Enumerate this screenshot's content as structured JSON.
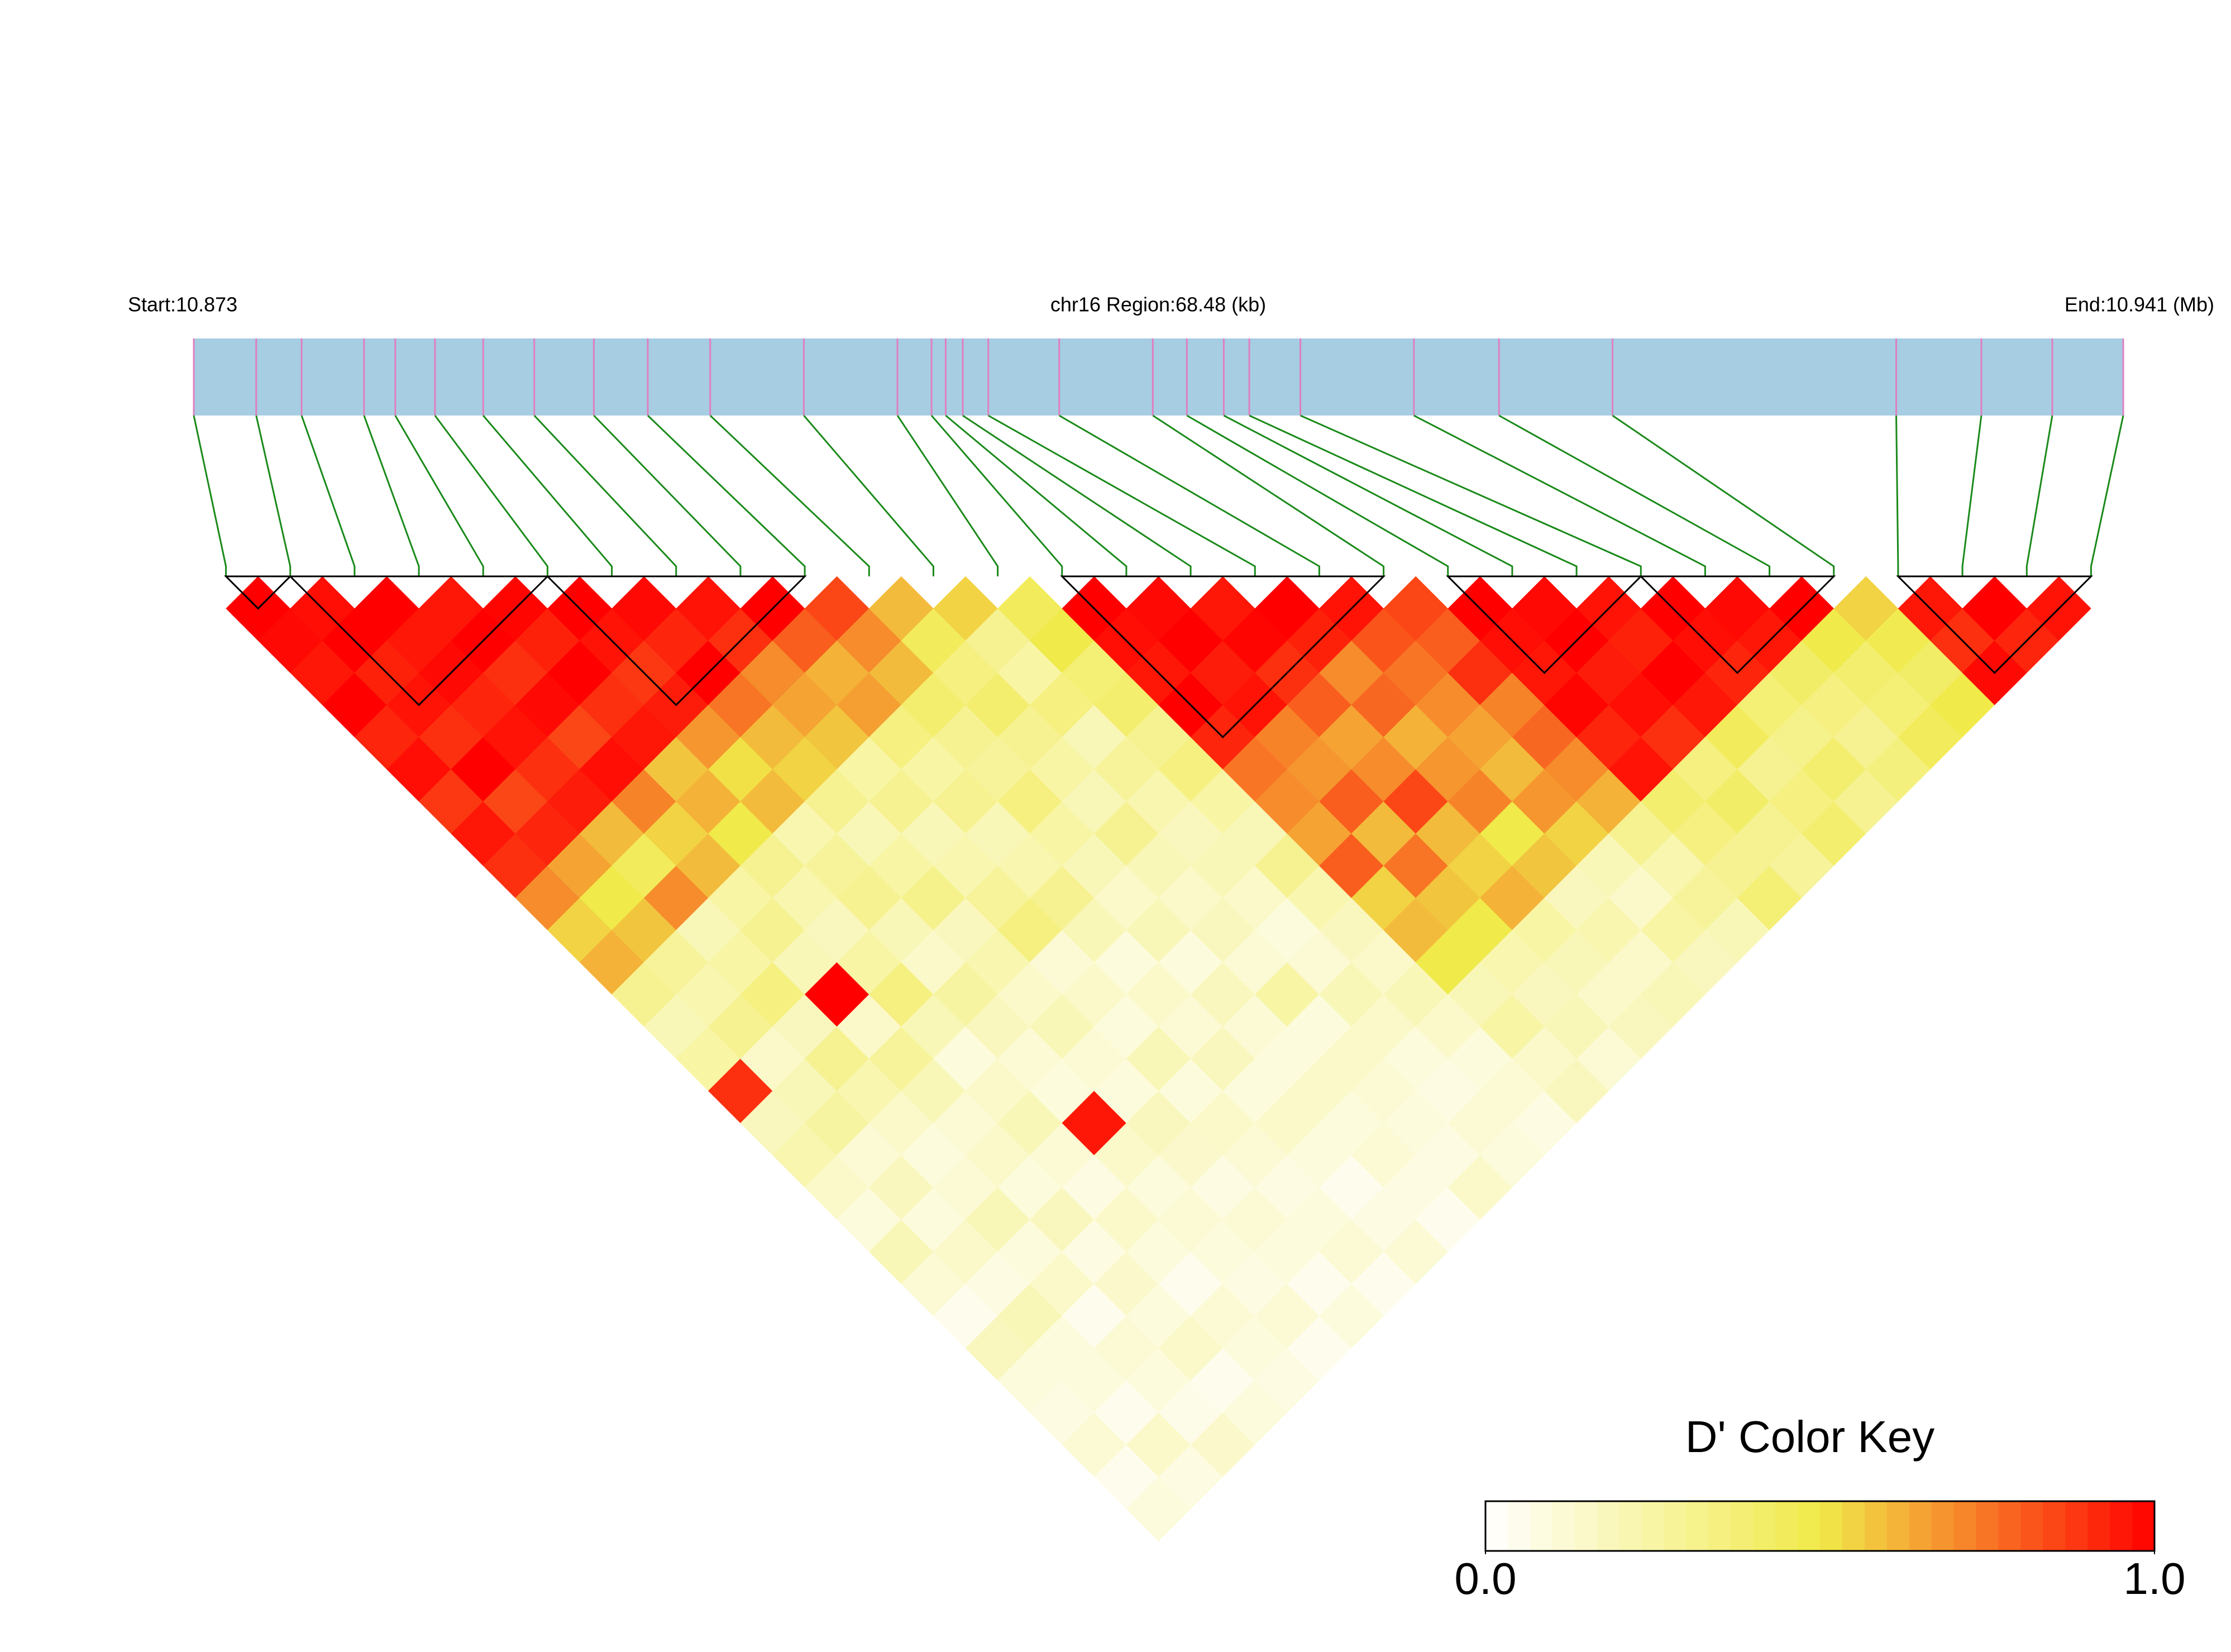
{
  "chart_data": {
    "type": "ld-heatmap",
    "start_label": "Start:10.873",
    "region_label": "chr16 Region:68.48 (kb)",
    "end_label": "End:10.941 (Mb)",
    "xlim": [
      10.873,
      10.941
    ],
    "snp_positions": [
      10.873,
      10.8752,
      10.8768,
      10.879,
      10.8801,
      10.8815,
      10.8832,
      10.885,
      10.8871,
      10.889,
      10.8912,
      10.8945,
      10.8978,
      10.899,
      10.8995,
      10.9001,
      10.901,
      10.9035,
      10.9068,
      10.908,
      10.9093,
      10.9102,
      10.912,
      10.916,
      10.919,
      10.923,
      10.933,
      10.936,
      10.9385,
      10.941
    ],
    "dprime": [
      [
        1,
        0.98,
        0.95,
        1,
        0.92,
        0.97,
        0.88,
        0.95,
        0.9,
        0.7,
        0.55,
        0.62,
        0.3,
        0.2,
        0.25,
        0.9,
        0.18,
        0.22,
        0.15,
        0.1,
        0.2,
        0.12,
        0.05,
        0.18,
        0.1,
        0.08,
        0.12,
        0.05,
        0.1
      ],
      [
        0.97,
        1,
        0.93,
        0.96,
        0.9,
        1,
        0.85,
        0.92,
        0.65,
        0.5,
        0.58,
        0.28,
        0.22,
        0.3,
        0.15,
        0.2,
        0.26,
        0.12,
        0.18,
        0.1,
        0.15,
        0.08,
        0.2,
        0.1,
        0.1,
        0.05,
        0.15,
        0.08
      ],
      [
        1,
        0.95,
        0.98,
        0.92,
        0.96,
        0.9,
        0.94,
        0.6,
        0.45,
        0.7,
        0.2,
        0.25,
        0.35,
        0.18,
        0.3,
        0.22,
        0.15,
        0.1,
        0.12,
        0.2,
        0.1,
        0.15,
        0.05,
        0.12,
        0.1,
        0.06,
        0.14
      ],
      [
        0.95,
        1,
        0.9,
        0.98,
        0.85,
        0.97,
        0.72,
        0.55,
        0.6,
        0.25,
        0.3,
        0.2,
        1,
        0.15,
        0.28,
        0.2,
        0.12,
        0.15,
        0.1,
        0.18,
        0.08,
        0.14,
        0.1,
        0.15,
        0.05,
        0.1
      ],
      [
        0.99,
        0.93,
        1,
        0.9,
        0.95,
        0.58,
        0.62,
        0.5,
        0.3,
        0.22,
        0.18,
        0.25,
        0.35,
        0.2,
        0.1,
        0.15,
        0.2,
        0.12,
        0.08,
        0.15,
        0.1,
        0.05,
        0.12,
        0.1,
        0.08
      ],
      [
        1,
        0.96,
        0.88,
        0.94,
        0.68,
        0.52,
        0.6,
        0.22,
        0.28,
        0.3,
        0.2,
        0.15,
        0.26,
        0.18,
        0.12,
        0.1,
        0.95,
        0.15,
        0.1,
        0.12,
        0.1,
        0.08,
        0.12,
        0.05
      ],
      [
        0.98,
        0.92,
        1,
        0.75,
        0.6,
        0.55,
        0.3,
        0.2,
        0.25,
        0.32,
        0.18,
        0.22,
        0.15,
        0.2,
        0.12,
        0.1,
        0.18,
        0.14,
        0.08,
        0.12,
        0.1,
        0.05,
        0.1
      ],
      [
        0.96,
        0.9,
        0.7,
        0.65,
        0.58,
        0.25,
        0.3,
        0.2,
        0.22,
        0.28,
        0.35,
        0.12,
        0.15,
        0.1,
        0.2,
        0.1,
        0.15,
        0.12,
        0.08,
        0.1,
        0.12,
        0.05
      ],
      [
        1,
        0.8,
        0.62,
        0.66,
        0.35,
        0.25,
        0.3,
        0.2,
        0.22,
        0.3,
        0.2,
        0.1,
        0.15,
        0.12,
        0.18,
        0.1,
        0.15,
        0.1,
        0.05,
        0.08,
        0.12
      ],
      [
        0.85,
        0.7,
        0.6,
        0.4,
        0.3,
        0.28,
        0.35,
        0.25,
        0.2,
        0.15,
        0.2,
        0.1,
        0.18,
        0.12,
        0.1,
        0.15,
        0.1,
        0.12,
        0.08,
        0.05
      ],
      [
        0.6,
        0.45,
        0.35,
        0.4,
        0.3,
        0.25,
        0.2,
        0.3,
        0.2,
        0.15,
        0.18,
        0.12,
        0.25,
        0.1,
        0.15,
        0.12,
        0.1,
        0.08,
        0.15
      ],
      [
        0.55,
        0.3,
        0.25,
        0.35,
        0.2,
        0.28,
        0.22,
        0.18,
        0.2,
        0.15,
        0.1,
        0.12,
        0.2,
        0.15,
        0.1,
        0.08,
        0.12,
        0.1
      ],
      [
        0.45,
        0.5,
        0.38,
        0.4,
        0.3,
        0.35,
        0.25,
        0.2,
        0.3,
        0.22,
        0.18,
        0.15,
        0.2,
        0.15,
        0.1,
        0.12,
        0.08
      ],
      [
        1,
        0.97,
        0.95,
        1,
        0.92,
        0.75,
        0.7,
        0.65,
        0.8,
        0.55,
        0.6,
        0.5,
        0.2,
        0.25,
        0.15,
        0.18
      ],
      [
        0.98,
        1,
        0.94,
        0.96,
        0.72,
        0.68,
        0.8,
        0.6,
        0.75,
        0.58,
        0.5,
        0.22,
        0.18,
        0.2,
        0.12
      ],
      [
        0.95,
        0.99,
        0.9,
        0.8,
        0.65,
        0.7,
        0.85,
        0.6,
        0.55,
        0.62,
        0.25,
        0.2,
        0.15,
        0.18
      ],
      [
        1,
        0.93,
        0.7,
        0.78,
        0.62,
        0.68,
        0.72,
        0.5,
        0.58,
        0.18,
        0.22,
        0.15,
        0.2
      ],
      [
        0.96,
        0.82,
        0.75,
        0.7,
        0.65,
        0.6,
        0.68,
        0.55,
        0.2,
        0.15,
        0.25,
        0.18
      ],
      [
        0.85,
        0.8,
        0.9,
        0.72,
        0.78,
        0.7,
        0.62,
        0.3,
        0.22,
        0.28,
        0.2
      ],
      [
        1,
        0.97,
        0.95,
        0.99,
        0.92,
        0.96,
        0.4,
        0.35,
        0.3,
        0.38
      ],
      [
        0.98,
        1,
        0.94,
        0.97,
        0.9,
        0.35,
        0.42,
        0.3,
        0.28
      ],
      [
        0.96,
        0.93,
        1,
        0.95,
        0.45,
        0.3,
        0.35,
        0.4
      ],
      [
        1,
        0.97,
        0.92,
        0.38,
        0.32,
        0.4,
        0.3
      ],
      [
        0.98,
        0.95,
        0.42,
        0.35,
        0.3,
        0.36
      ],
      [
        1,
        0.5,
        0.4,
        0.38,
        0.45
      ],
      [
        0.55,
        0.48,
        0.42,
        0.5
      ],
      [
        0.95,
        0.9,
        0.98
      ],
      [
        1,
        0.92
      ],
      [
        0.96
      ]
    ],
    "blocks": [
      [
        0,
        1
      ],
      [
        1,
        5
      ],
      [
        5,
        9
      ],
      [
        13,
        18
      ],
      [
        19,
        22
      ],
      [
        22,
        25
      ],
      [
        26,
        29
      ]
    ],
    "colors": [
      "#ffffff",
      "#f0ea4a",
      "#ff0000"
    ],
    "colorbar": {
      "title": "D' Color Key",
      "ticks": [
        {
          "value": 0,
          "label": "0.0"
        },
        {
          "value": 1,
          "label": "1.0"
        }
      ]
    }
  }
}
